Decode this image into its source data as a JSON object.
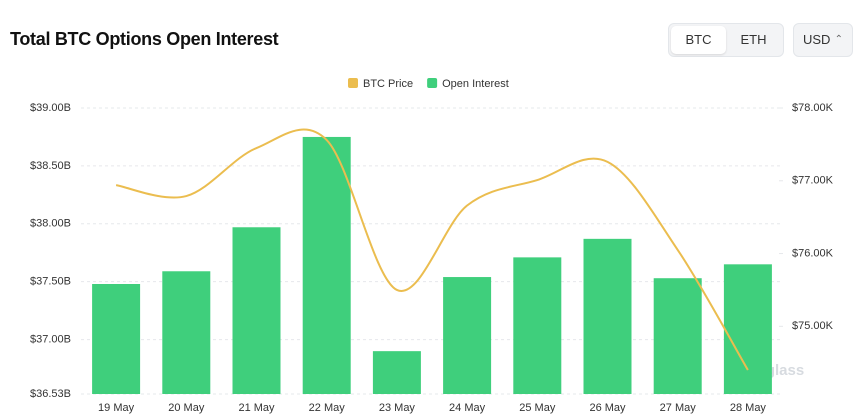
{
  "title": "Total BTC Options Open Interest",
  "toggle": [
    "BTC",
    "ETH"
  ],
  "currency": "USD",
  "watermark": "coinglass",
  "chart_data": {
    "type": "bar",
    "categories": [
      "19 May",
      "20 May",
      "21 May",
      "22 May",
      "23 May",
      "24 May",
      "25 May",
      "26 May",
      "27 May",
      "28 May"
    ],
    "series": [
      {
        "name": "BTC Price",
        "type": "line",
        "axis": "y2",
        "color": "#ebbd4f",
        "values": [
          76.94,
          76.79,
          77.45,
          77.56,
          75.5,
          76.66,
          77.01,
          77.26,
          76.05,
          74.4
        ]
      },
      {
        "name": "Open Interest",
        "type": "bar",
        "color": "#3fcf7c",
        "values": [
          37.48,
          37.59,
          37.97,
          38.75,
          36.9,
          37.54,
          37.71,
          37.87,
          37.53,
          37.65
        ]
      }
    ],
    "ylim": [
      36.53,
      39.0
    ],
    "yticks": [
      {
        "value": 36.53,
        "label": "$36.53B"
      },
      {
        "value": 37.0,
        "label": "$37.00B"
      },
      {
        "value": 37.5,
        "label": "$37.50B"
      },
      {
        "value": 38.0,
        "label": "$38.00B"
      },
      {
        "value": 38.5,
        "label": "$38.50B"
      },
      {
        "value": 39.0,
        "label": "$39.00B"
      }
    ],
    "y2lim": [
      74.07,
      78.0
    ],
    "y2ticks": [
      {
        "value": 75.0,
        "label": "$75.00K"
      },
      {
        "value": 76.0,
        "label": "$76.00K"
      },
      {
        "value": 77.0,
        "label": "$77.00K"
      },
      {
        "value": 78.0,
        "label": "$78.00K"
      }
    ],
    "grid": true,
    "legend": "top"
  }
}
